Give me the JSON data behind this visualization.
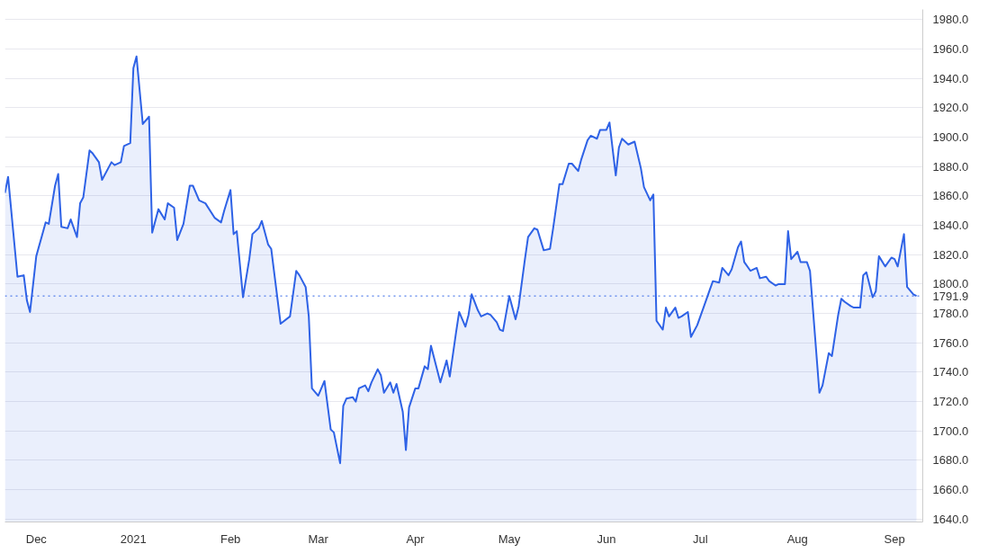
{
  "chart_data": {
    "type": "area",
    "x": [
      "2020-11-21",
      "2020-11-22",
      "2020-11-25",
      "2020-11-27",
      "2020-11-28",
      "2020-11-29",
      "2020-12-01",
      "2020-12-04",
      "2020-12-05",
      "2020-12-07",
      "2020-12-08",
      "2020-12-09",
      "2020-12-11",
      "2020-12-12",
      "2020-12-14",
      "2020-12-15",
      "2020-12-16",
      "2020-12-18",
      "2020-12-19",
      "2020-12-21",
      "2020-12-22",
      "2020-12-25",
      "2020-12-26",
      "2020-12-28",
      "2020-12-29",
      "2020-12-31",
      "2021-01-01",
      "2021-01-02",
      "2021-01-04",
      "2021-01-06",
      "2021-01-07",
      "2021-01-09",
      "2021-01-11",
      "2021-01-12",
      "2021-01-14",
      "2021-01-15",
      "2021-01-17",
      "2021-01-19",
      "2021-01-20",
      "2021-01-22",
      "2021-01-24",
      "2021-01-27",
      "2021-01-29",
      "2021-01-30",
      "2021-02-01",
      "2021-02-02",
      "2021-02-03",
      "2021-02-05",
      "2021-02-07",
      "2021-02-08",
      "2021-02-10",
      "2021-02-11",
      "2021-02-13",
      "2021-02-14",
      "2021-02-17",
      "2021-02-20",
      "2021-02-22",
      "2021-02-23",
      "2021-02-25",
      "2021-02-26",
      "2021-02-27",
      "2021-03-01",
      "2021-03-03",
      "2021-03-05",
      "2021-03-06",
      "2021-03-08",
      "2021-03-09",
      "2021-03-10",
      "2021-03-12",
      "2021-03-13",
      "2021-03-14",
      "2021-03-16",
      "2021-03-17",
      "2021-03-18",
      "2021-03-20",
      "2021-03-21",
      "2021-03-22",
      "2021-03-24",
      "2021-03-25",
      "2021-03-26",
      "2021-03-28",
      "2021-03-29",
      "2021-03-30",
      "2021-04-01",
      "2021-04-02",
      "2021-04-04",
      "2021-04-05",
      "2021-04-06",
      "2021-04-09",
      "2021-04-11",
      "2021-04-12",
      "2021-04-14",
      "2021-04-15",
      "2021-04-17",
      "2021-04-18",
      "2021-04-19",
      "2021-04-21",
      "2021-04-22",
      "2021-04-24",
      "2021-04-25",
      "2021-04-27",
      "2021-04-28",
      "2021-04-29",
      "2021-05-01",
      "2021-05-03",
      "2021-05-04",
      "2021-05-06",
      "2021-05-07",
      "2021-05-09",
      "2021-05-10",
      "2021-05-12",
      "2021-05-14",
      "2021-05-15",
      "2021-05-17",
      "2021-05-18",
      "2021-05-20",
      "2021-05-21",
      "2021-05-23",
      "2021-05-24",
      "2021-05-26",
      "2021-05-27",
      "2021-05-29",
      "2021-05-30",
      "2021-06-01",
      "2021-06-02",
      "2021-06-04",
      "2021-06-05",
      "2021-06-06",
      "2021-06-08",
      "2021-06-10",
      "2021-06-12",
      "2021-06-13",
      "2021-06-15",
      "2021-06-16",
      "2021-06-17",
      "2021-06-19",
      "2021-06-20",
      "2021-06-21",
      "2021-06-23",
      "2021-06-24",
      "2021-06-25",
      "2021-06-27",
      "2021-06-28",
      "2021-06-30",
      "2021-07-02",
      "2021-07-04",
      "2021-07-05",
      "2021-07-07",
      "2021-07-08",
      "2021-07-10",
      "2021-07-11",
      "2021-07-13",
      "2021-07-14",
      "2021-07-15",
      "2021-07-17",
      "2021-07-19",
      "2021-07-20",
      "2021-07-22",
      "2021-07-23",
      "2021-07-25",
      "2021-07-26",
      "2021-07-28",
      "2021-07-29",
      "2021-07-30",
      "2021-08-01",
      "2021-08-02",
      "2021-08-04",
      "2021-08-05",
      "2021-08-08",
      "2021-08-09",
      "2021-08-11",
      "2021-08-12",
      "2021-08-14",
      "2021-08-15",
      "2021-08-16",
      "2021-08-18",
      "2021-08-19",
      "2021-08-21",
      "2021-08-22",
      "2021-08-23",
      "2021-08-25",
      "2021-08-26",
      "2021-08-27",
      "2021-08-29",
      "2021-08-31",
      "2021-09-01",
      "2021-09-02",
      "2021-09-04",
      "2021-09-05",
      "2021-09-07",
      "2021-09-08"
    ],
    "series": [
      {
        "color": "#2e62e6",
        "values": [
          1862,
          1873,
          1805,
          1806,
          1789,
          1781,
          1819,
          1842,
          1841,
          1867,
          1875,
          1839,
          1838,
          1844,
          1832,
          1855,
          1859,
          1891,
          1889,
          1883,
          1871,
          1883,
          1881,
          1883,
          1894,
          1896,
          1947,
          1955,
          1909,
          1914,
          1835,
          1851,
          1844,
          1855,
          1852,
          1830,
          1841,
          1867,
          1867,
          1857,
          1855,
          1845,
          1842,
          1850,
          1864,
          1834,
          1836,
          1791,
          1817,
          1834,
          1838,
          1843,
          1827,
          1824,
          1773,
          1778,
          1809,
          1806,
          1798,
          1778,
          1729,
          1724,
          1734,
          1701,
          1699,
          1678,
          1717,
          1722,
          1723,
          1720,
          1729,
          1731,
          1727,
          1733,
          1742,
          1738,
          1726,
          1733,
          1726,
          1732,
          1713,
          1687,
          1716,
          1729,
          1729,
          1744,
          1742,
          1758,
          1733,
          1748,
          1737,
          1767,
          1781,
          1771,
          1779,
          1793,
          1782,
          1778,
          1780,
          1779,
          1774,
          1769,
          1768,
          1791.9,
          1776,
          1785,
          1817,
          1832,
          1838,
          1837,
          1823,
          1824,
          1838,
          1868,
          1868,
          1882,
          1882,
          1877,
          1885,
          1898,
          1901,
          1899,
          1905,
          1905,
          1910,
          1874,
          1893,
          1899,
          1895,
          1897,
          1879,
          1866,
          1857,
          1861,
          1775,
          1769,
          1784,
          1778,
          1784,
          1777,
          1778,
          1781,
          1764,
          1772,
          1784,
          1796,
          1802,
          1801,
          1811,
          1806,
          1810,
          1825,
          1829,
          1815,
          1809,
          1811,
          1804,
          1805,
          1802,
          1799,
          1800,
          1800,
          1836,
          1817,
          1822,
          1815,
          1815,
          1809,
          1726,
          1731,
          1753,
          1751,
          1779,
          1790,
          1788,
          1785,
          1784,
          1784,
          1806,
          1808,
          1791,
          1795,
          1819,
          1812,
          1818,
          1817,
          1812,
          1834,
          1798,
          1793,
          1791.9
        ]
      }
    ],
    "xlim": [
      "2020-11-21",
      "2021-09-10"
    ],
    "xticks": [
      {
        "value": "2020-12-01",
        "label": "Dec"
      },
      {
        "value": "2021-01-01",
        "label": "2021"
      },
      {
        "value": "2021-02-01",
        "label": "Feb"
      },
      {
        "value": "2021-03-01",
        "label": "Mar"
      },
      {
        "value": "2021-04-01",
        "label": "Apr"
      },
      {
        "value": "2021-05-01",
        "label": "May"
      },
      {
        "value": "2021-06-01",
        "label": "Jun"
      },
      {
        "value": "2021-07-01",
        "label": "Jul"
      },
      {
        "value": "2021-08-01",
        "label": "Aug"
      },
      {
        "value": "2021-09-01",
        "label": "Sep"
      }
    ],
    "ylim": [
      1638,
      1987
    ],
    "yticks": [
      {
        "value": 1640,
        "label": "1640.0"
      },
      {
        "value": 1660,
        "label": "1660.0"
      },
      {
        "value": 1680,
        "label": "1680.0"
      },
      {
        "value": 1700,
        "label": "1700.0"
      },
      {
        "value": 1720,
        "label": "1720.0"
      },
      {
        "value": 1740,
        "label": "1740.0"
      },
      {
        "value": 1760,
        "label": "1760.0"
      },
      {
        "value": 1780,
        "label": "1780.0"
      },
      {
        "value": 1800,
        "label": "1800.0"
      },
      {
        "value": 1820,
        "label": "1820.0"
      },
      {
        "value": 1840,
        "label": "1840.0"
      },
      {
        "value": 1860,
        "label": "1860.0"
      },
      {
        "value": 1880,
        "label": "1880.0"
      },
      {
        "value": 1900,
        "label": "1900.0"
      },
      {
        "value": 1920,
        "label": "1920.0"
      },
      {
        "value": 1940,
        "label": "1940.0"
      },
      {
        "value": 1960,
        "label": "1960.0"
      },
      {
        "value": 1980,
        "label": "1980.0"
      }
    ],
    "ref_lines": [
      {
        "axis": "y",
        "value": 1791.9,
        "label": "1791.9",
        "color": "#2e62e6",
        "line_style": "dotted"
      }
    ],
    "grid": true,
    "line_style": "solid"
  }
}
